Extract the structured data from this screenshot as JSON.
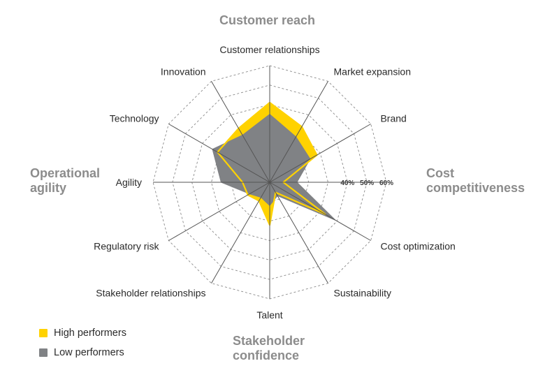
{
  "groups": {
    "customer_reach": "Customer reach",
    "cost_competitiveness": [
      "Cost",
      "competitiveness"
    ],
    "stakeholder_confidence": [
      "Stakeholder",
      "confidence"
    ],
    "operational_agility": [
      "Operational",
      "agility"
    ]
  },
  "legend": {
    "high": "High performers",
    "low": "Low performers"
  },
  "colors": {
    "high": "#FFD200",
    "low": "#808285",
    "grid": "#8a8a8a",
    "spoke": "#555555",
    "group_label": "#8c8c8c",
    "text": "#2a2a2a"
  },
  "chart_data": {
    "type": "radar",
    "categories": [
      "Customer relationships",
      "Market expansion",
      "Brand",
      "Cost competitiveness",
      "Cost optimization",
      "Sustainability",
      "Talent",
      "Stakeholder relationships",
      "Regulatory risk",
      "Agility",
      "Technology",
      "Innovation"
    ],
    "label_categories": [
      "Customer relationships",
      "Market expansion",
      "Brand",
      "Cost optimization",
      "Sustainability",
      "Talent",
      "Stakeholder relationships",
      "Regulatory risk",
      "Agility",
      "Technology",
      "Innovation"
    ],
    "tick_labels": [
      "40%",
      "50%",
      "60%"
    ],
    "rlim": [
      0,
      60
    ],
    "rings": [
      10,
      20,
      30,
      40,
      50,
      60
    ],
    "series": [
      {
        "name": "High performers",
        "values": [
          41,
          33,
          28,
          7,
          33,
          6,
          22,
          11,
          13,
          14,
          31,
          32
        ]
      },
      {
        "name": "Low performers",
        "values": [
          35,
          27,
          24,
          14,
          39,
          8,
          12,
          9,
          12,
          25,
          34,
          28
        ]
      }
    ]
  }
}
